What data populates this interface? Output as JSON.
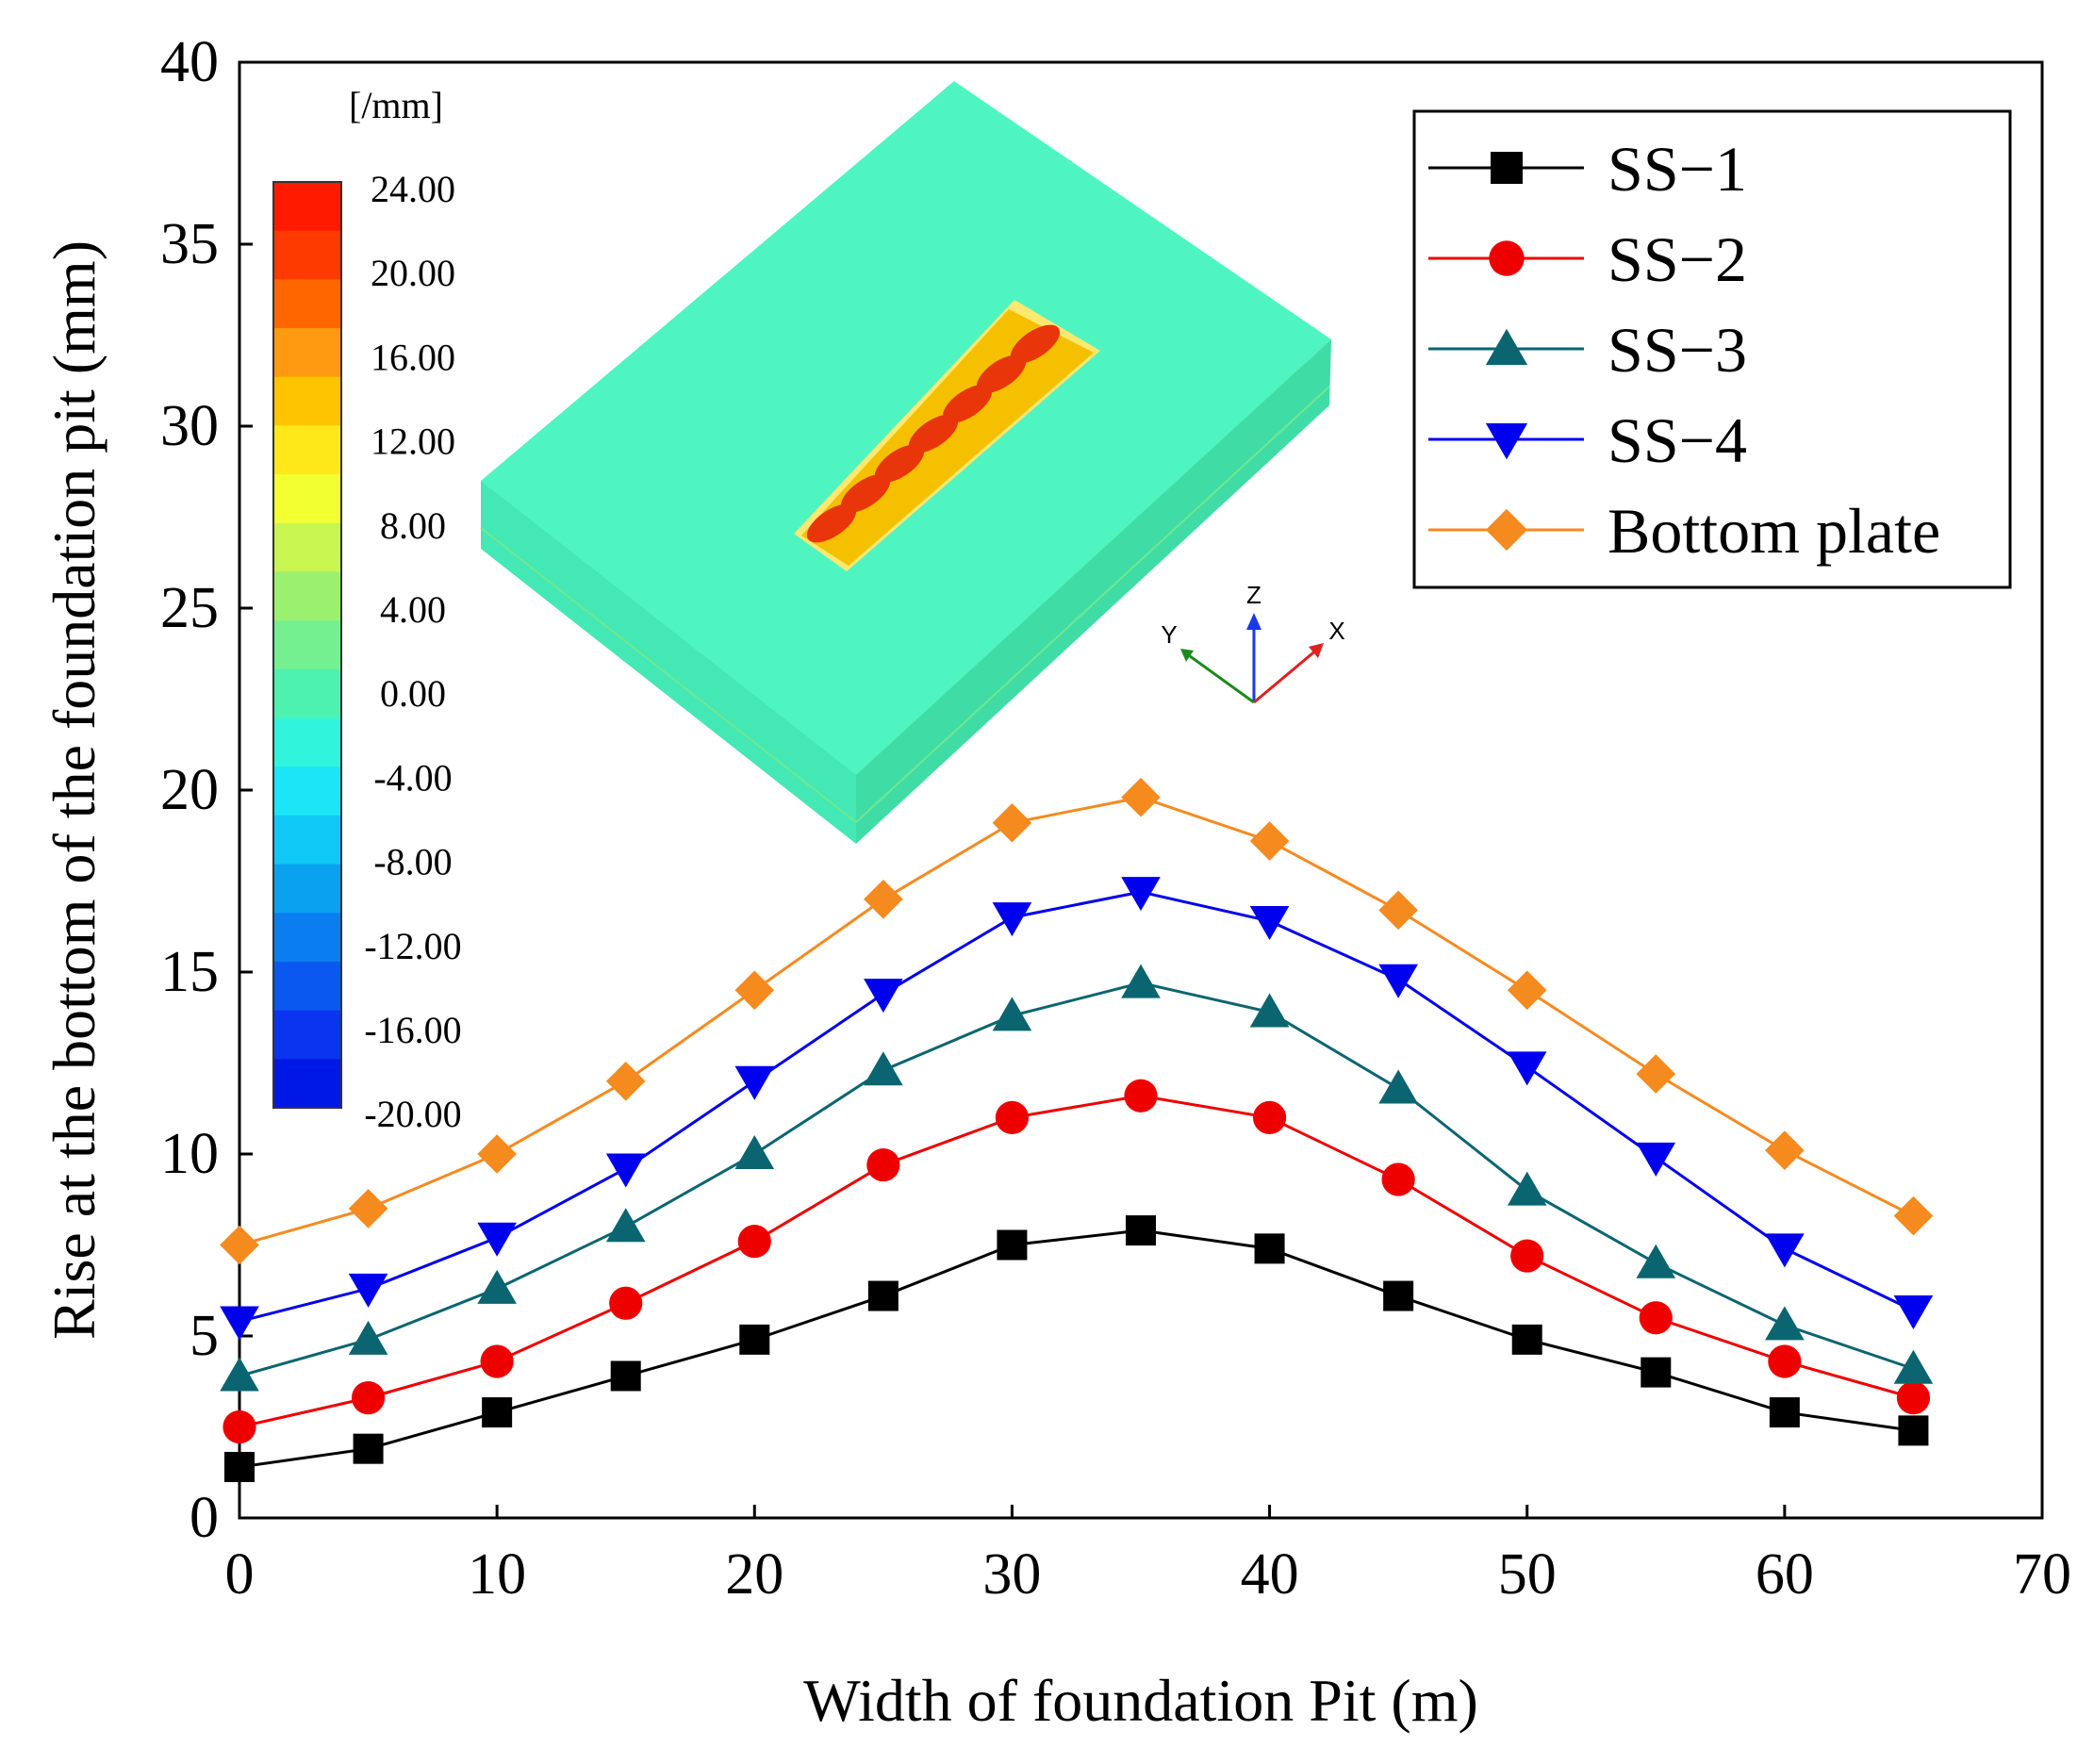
{
  "chart_data": {
    "type": "line",
    "xlabel": "Width of foundation Pit (m)",
    "ylabel": "Rise at the bottom of the foundation pit (mm)",
    "xlim": [
      0,
      70
    ],
    "ylim": [
      0,
      40
    ],
    "xticks": [
      0,
      10,
      20,
      30,
      40,
      50,
      60,
      70
    ],
    "yticks": [
      0,
      5,
      10,
      15,
      20,
      25,
      30,
      35,
      40
    ],
    "legend_position": "top-right",
    "x": [
      0,
      5,
      10,
      15,
      20,
      25,
      30,
      35,
      40,
      45,
      50,
      55,
      60,
      65
    ],
    "series": [
      {
        "name": "SS−1",
        "color": "#000000",
        "marker": "square",
        "values": [
          1.4,
          1.9,
          2.9,
          3.9,
          4.9,
          6.1,
          7.5,
          7.9,
          7.4,
          6.1,
          4.9,
          4.0,
          2.9,
          2.4
        ]
      },
      {
        "name": "SS−2",
        "color": "#ee0000",
        "marker": "circle",
        "values": [
          2.5,
          3.3,
          4.3,
          5.9,
          7.6,
          9.7,
          11.0,
          11.6,
          11.0,
          9.3,
          7.2,
          5.5,
          4.3,
          3.3
        ]
      },
      {
        "name": "SS−3",
        "color": "#0a6570",
        "marker": "triangle-up",
        "values": [
          3.9,
          4.9,
          6.3,
          8.0,
          10.0,
          12.3,
          13.8,
          14.7,
          13.9,
          11.8,
          9.0,
          7.0,
          5.3,
          4.1
        ]
      },
      {
        "name": "SS−4",
        "color": "#0000ee",
        "marker": "triangle-down",
        "values": [
          5.4,
          6.3,
          7.7,
          9.6,
          12.0,
          14.4,
          16.5,
          17.2,
          16.4,
          14.8,
          12.4,
          9.9,
          7.4,
          5.7
        ]
      },
      {
        "name": "Bottom plate",
        "color": "#f58a1f",
        "marker": "diamond",
        "values": [
          7.5,
          8.5,
          10.0,
          12.0,
          14.5,
          17.0,
          19.1,
          19.8,
          18.6,
          16.7,
          14.5,
          12.2,
          10.1,
          8.3
        ]
      }
    ],
    "inset": {
      "unit_label": "[/mm]",
      "colorbar_ticks": [
        "24.00",
        "20.00",
        "16.00",
        "12.00",
        "8.00",
        "4.00",
        "0.00",
        "-4.00",
        "-8.00",
        "-12.00",
        "-16.00",
        "-20.00"
      ],
      "colorbar_colors": [
        "#ff1a00",
        "#ff3a00",
        "#ff6600",
        "#ff9a10",
        "#ffc400",
        "#ffe81a",
        "#f2ff30",
        "#c8f550",
        "#9cf070",
        "#74f090",
        "#4cf2b0",
        "#30f5dc",
        "#1ae6f5",
        "#10c8f5",
        "#0aa2f0",
        "#0a7ef0",
        "#0a58f0",
        "#0a34f0",
        "#0018e6"
      ],
      "axes": {
        "x": "X",
        "y": "Y",
        "z": "Z"
      },
      "axis_colors": {
        "x": "#e02020",
        "y": "#1a8a1a",
        "z": "#1a3ae6"
      },
      "model_colors": {
        "top": "#4ef5c0",
        "side_light": "#44e8b4",
        "side_dark": "#40dca6",
        "layer": "#70e890",
        "pit": "#f5c000",
        "pit_spot": "#e8360a",
        "pit_edge": "#ffe870"
      }
    }
  }
}
